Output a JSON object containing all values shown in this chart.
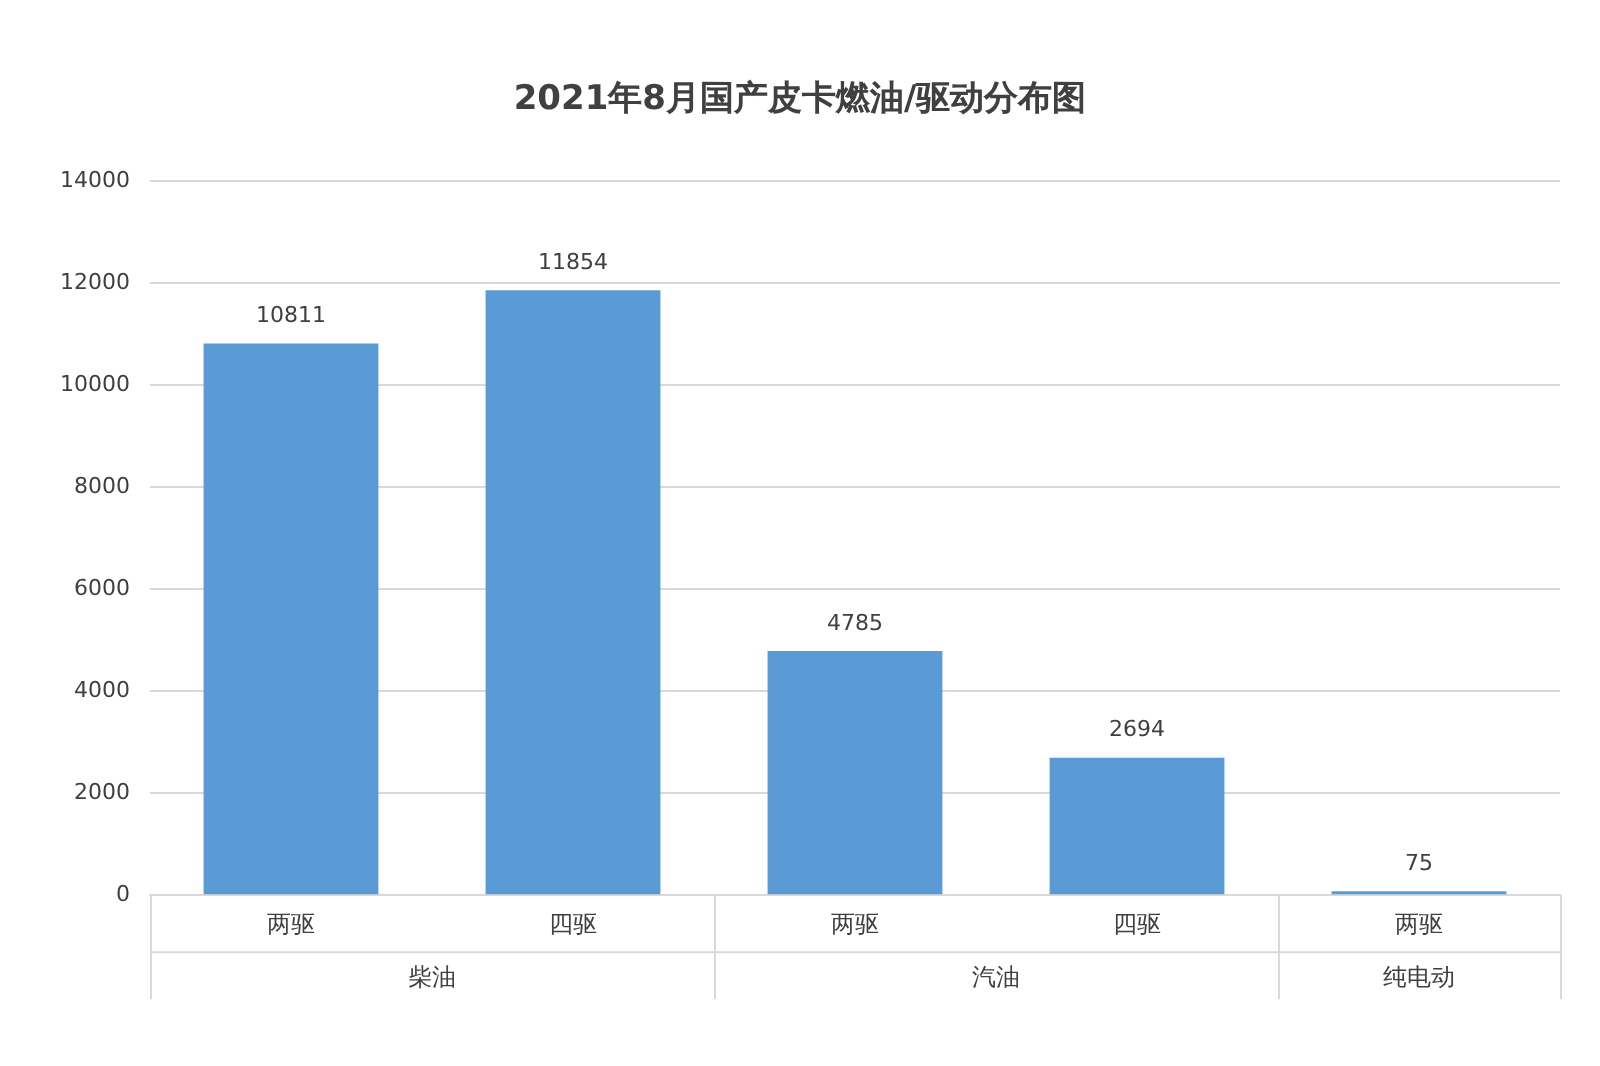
{
  "chart_data": {
    "type": "bar",
    "title": "2021年8月国产皮卡燃油/驱动分布图",
    "categories": [
      "两驱",
      "四驱",
      "两驱",
      "四驱",
      "两驱"
    ],
    "values": [
      10811,
      11854,
      4785,
      2694,
      75
    ],
    "color": "#5b9bd5",
    "ylim": [
      0,
      14000
    ],
    "yticks": [
      0,
      2000,
      4000,
      6000,
      8000,
      10000,
      12000,
      14000
    ],
    "grid": "y",
    "legend": false,
    "data_labels": true,
    "annotations": [
      "柴油",
      "汽油",
      "纯电动"
    ]
  }
}
